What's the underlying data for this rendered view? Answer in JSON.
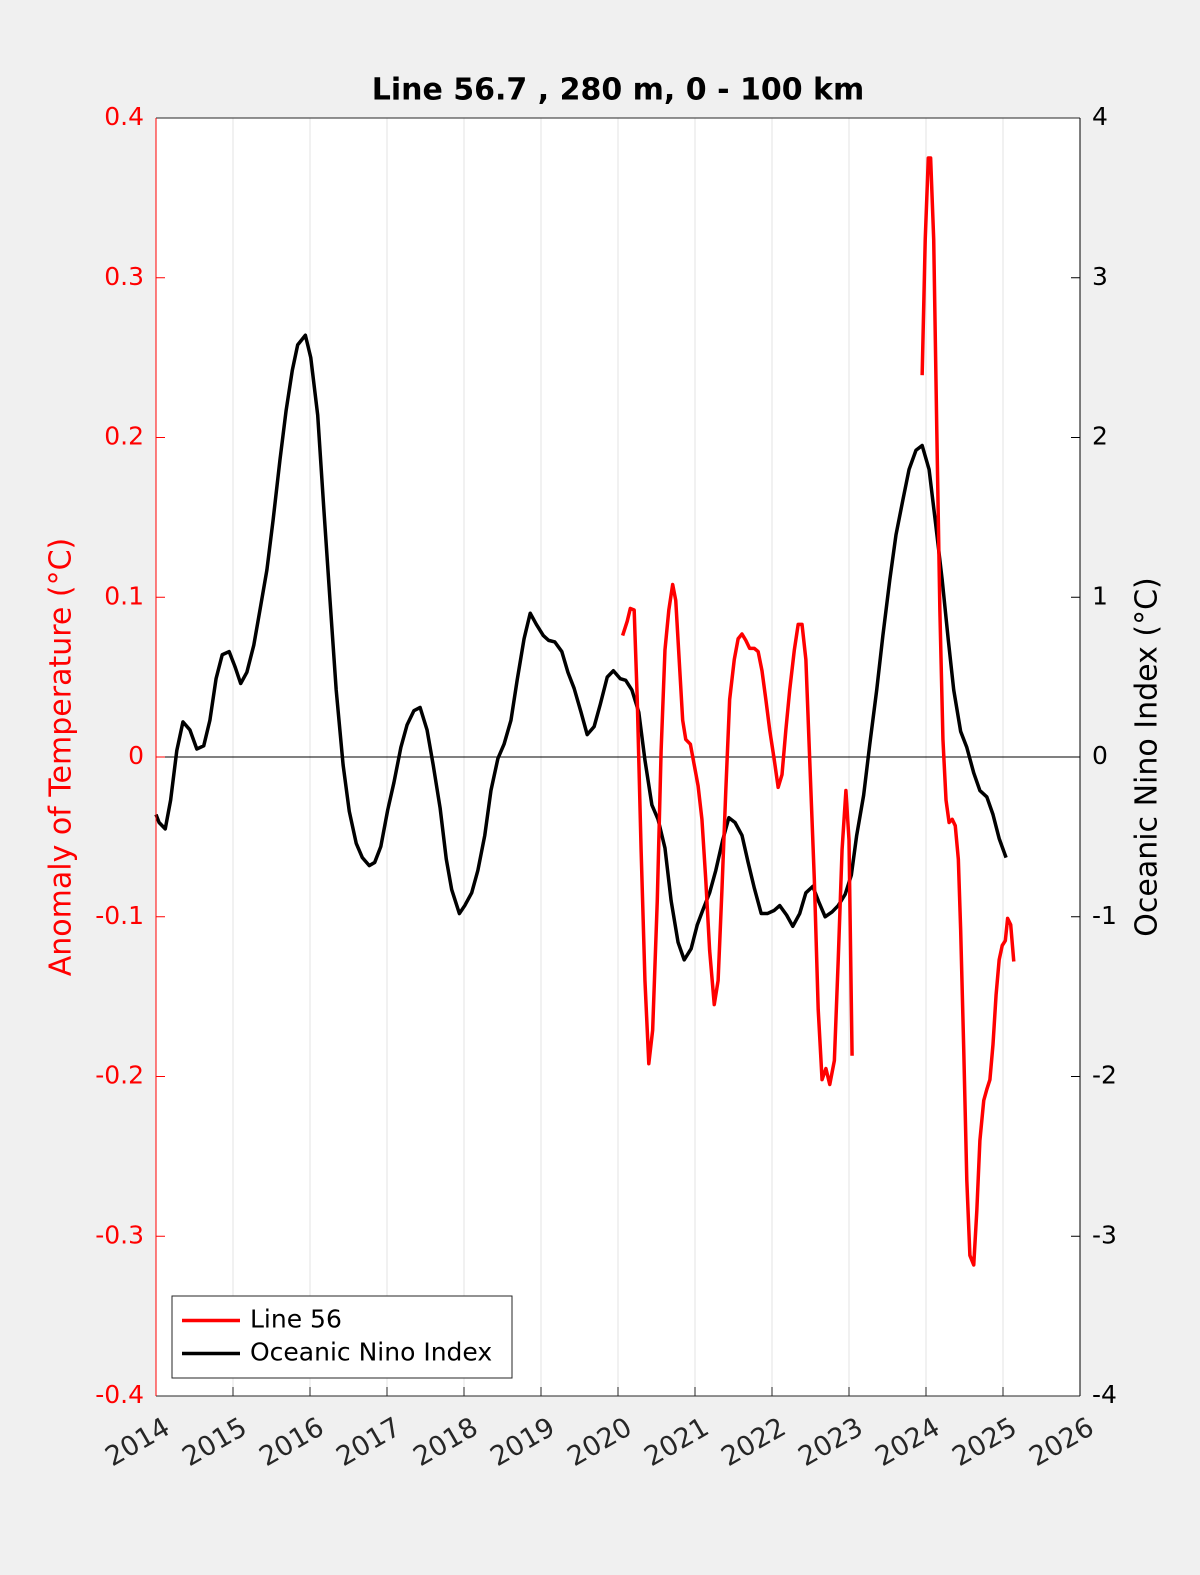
{
  "chart_data": {
    "type": "line",
    "title": "Line 56.7 , 280 m, 0 - 100 km",
    "ylabel": "Anomaly of Temperature (°C)",
    "y2label": "Oceanic Nino Index (°C)",
    "xlim": [
      2014,
      2026
    ],
    "xticks": [
      2014,
      2015,
      2016,
      2017,
      2018,
      2019,
      2020,
      2021,
      2022,
      2023,
      2024,
      2025,
      2026
    ],
    "ylim": [
      -0.4,
      0.4
    ],
    "yticks": [
      -0.4,
      -0.3,
      -0.2,
      -0.1,
      0,
      0.1,
      0.2,
      0.3,
      0.4
    ],
    "y2lim": [
      -4,
      4
    ],
    "y2ticks": [
      -4,
      -3,
      -2,
      -1,
      0,
      1,
      2,
      3,
      4
    ],
    "grid": "x",
    "zero_line": true,
    "legend": "lower left",
    "series": [
      {
        "name": "Line 56",
        "color": "#ff0000",
        "axis": "y",
        "x": [
          2020.06,
          2020.12,
          2020.16,
          2020.21,
          2020.25,
          2020.3,
          2020.35,
          2020.4,
          2020.45,
          2020.51,
          2020.56,
          2020.61,
          2020.66,
          2020.71,
          2020.75,
          2020.81,
          2020.84,
          2020.88,
          2020.94,
          2020.99,
          2021.04,
          2021.09,
          2021.14,
          2021.19,
          2021.25,
          2021.3,
          2021.35,
          2021.4,
          2021.45,
          2021.51,
          2021.56,
          2021.61,
          2021.66,
          2021.71,
          2021.77,
          2021.82,
          2021.87,
          2021.92,
          2021.97,
          2022.03,
          2022.08,
          2022.13,
          2022.18,
          2022.23,
          2022.29,
          2022.34,
          2022.39,
          2022.44,
          2022.49,
          2022.55,
          2022.6,
          2022.65,
          2022.7,
          2022.75,
          2022.81,
          2022.86,
          2022.91,
          2022.96,
          2023.0,
          2023.04,
          2023.5,
          2023.95,
          2023.99,
          2024.03,
          2024.06,
          2024.1,
          2024.14,
          2024.18,
          2024.22,
          2024.26,
          2024.3,
          2024.34,
          2024.38,
          2024.42,
          2024.45,
          2024.49,
          2024.53,
          2024.57,
          2024.62,
          2024.66,
          2024.7,
          2024.75,
          2024.79,
          2024.83,
          2024.87,
          2024.91,
          2024.95,
          2024.99,
          2025.03,
          2025.06,
          2025.1,
          2025.14
        ],
        "values": [
          0.076,
          0.085,
          0.093,
          0.092,
          0.036,
          -0.058,
          -0.14,
          -0.192,
          -0.171,
          -0.09,
          0.004,
          0.067,
          0.092,
          0.108,
          0.098,
          0.048,
          0.023,
          0.011,
          0.008,
          -0.005,
          -0.018,
          -0.039,
          -0.077,
          -0.121,
          -0.155,
          -0.14,
          -0.083,
          -0.021,
          0.036,
          0.061,
          0.074,
          0.077,
          0.073,
          0.068,
          0.068,
          0.066,
          0.054,
          0.036,
          0.017,
          -0.002,
          -0.019,
          -0.011,
          0.017,
          0.042,
          0.067,
          0.083,
          0.083,
          0.061,
          -0.002,
          -0.077,
          -0.158,
          -0.202,
          -0.195,
          -0.205,
          -0.19,
          -0.127,
          -0.058,
          -0.021,
          -0.052,
          -0.187,
          null,
          0.239,
          0.324,
          0.375,
          0.375,
          0.324,
          0.205,
          0.092,
          0.011,
          -0.027,
          -0.041,
          -0.039,
          -0.043,
          -0.064,
          -0.108,
          -0.183,
          -0.265,
          -0.312,
          -0.318,
          -0.284,
          -0.24,
          -0.215,
          -0.208,
          -0.202,
          -0.18,
          -0.149,
          -0.127,
          -0.118,
          -0.115,
          -0.101,
          -0.105,
          -0.128
        ]
      },
      {
        "name": "Oceanic Nino Index",
        "color": "#000000",
        "axis": "y2",
        "x": [
          2014.0,
          2014.04,
          2014.12,
          2014.19,
          2014.27,
          2014.35,
          2014.44,
          2014.53,
          2014.62,
          2014.7,
          2014.78,
          2014.86,
          2014.95,
          2015.03,
          2015.1,
          2015.18,
          2015.27,
          2015.35,
          2015.44,
          2015.52,
          2015.61,
          2015.69,
          2015.77,
          2015.84,
          2015.94,
          2016.01,
          2016.1,
          2016.18,
          2016.26,
          2016.34,
          2016.43,
          2016.51,
          2016.6,
          2016.68,
          2016.77,
          2016.84,
          2016.92,
          2017.01,
          2017.09,
          2017.18,
          2017.26,
          2017.35,
          2017.43,
          2017.52,
          2017.6,
          2017.69,
          2017.77,
          2017.84,
          2017.94,
          2018.01,
          2018.1,
          2018.18,
          2018.27,
          2018.35,
          2018.44,
          2018.52,
          2018.61,
          2018.69,
          2018.78,
          2018.86,
          2018.94,
          2019.03,
          2019.1,
          2019.18,
          2019.27,
          2019.35,
          2019.43,
          2019.52,
          2019.6,
          2019.69,
          2019.77,
          2019.86,
          2019.94,
          2020.03,
          2020.1,
          2020.18,
          2020.27,
          2020.35,
          2020.44,
          2020.52,
          2020.61,
          2020.69,
          2020.78,
          2020.86,
          2020.95,
          2021.03,
          2021.1,
          2021.19,
          2021.27,
          2021.36,
          2021.44,
          2021.52,
          2021.61,
          2021.69,
          2021.77,
          2021.86,
          2021.94,
          2022.03,
          2022.1,
          2022.19,
          2022.27,
          2022.36,
          2022.44,
          2022.53,
          2022.61,
          2022.69,
          2022.78,
          2022.86,
          2022.95,
          2023.03,
          2023.1,
          2023.19,
          2023.27,
          2023.36,
          2023.44,
          2023.53,
          2023.61,
          2023.7,
          2023.78,
          2023.87,
          2023.95,
          2024.04,
          2024.12,
          2024.21,
          2024.29,
          2024.36,
          2024.45,
          2024.53,
          2024.62,
          2024.7,
          2024.79,
          2024.87,
          2024.95,
          2025.04
        ],
        "values": [
          -0.36,
          -0.41,
          -0.45,
          -0.27,
          0.04,
          0.22,
          0.17,
          0.05,
          0.07,
          0.23,
          0.49,
          0.64,
          0.66,
          0.56,
          0.46,
          0.53,
          0.7,
          0.92,
          1.17,
          1.48,
          1.86,
          2.17,
          2.42,
          2.58,
          2.64,
          2.5,
          2.14,
          1.55,
          0.98,
          0.42,
          -0.05,
          -0.34,
          -0.54,
          -0.63,
          -0.68,
          -0.66,
          -0.56,
          -0.33,
          -0.16,
          0.06,
          0.2,
          0.29,
          0.31,
          0.17,
          -0.05,
          -0.32,
          -0.64,
          -0.83,
          -0.98,
          -0.93,
          -0.85,
          -0.71,
          -0.49,
          -0.21,
          -0.01,
          0.08,
          0.23,
          0.48,
          0.74,
          0.9,
          0.83,
          0.76,
          0.73,
          0.72,
          0.66,
          0.53,
          0.43,
          0.28,
          0.14,
          0.19,
          0.33,
          0.5,
          0.54,
          0.49,
          0.48,
          0.42,
          0.28,
          -0.02,
          -0.3,
          -0.39,
          -0.57,
          -0.9,
          -1.16,
          -1.27,
          -1.2,
          -1.05,
          -0.96,
          -0.85,
          -0.71,
          -0.52,
          -0.38,
          -0.41,
          -0.49,
          -0.66,
          -0.82,
          -0.98,
          -0.98,
          -0.96,
          -0.93,
          -0.99,
          -1.06,
          -0.98,
          -0.85,
          -0.81,
          -0.91,
          -1.0,
          -0.97,
          -0.93,
          -0.86,
          -0.74,
          -0.49,
          -0.24,
          0.08,
          0.42,
          0.76,
          1.11,
          1.39,
          1.61,
          1.8,
          1.92,
          1.95,
          1.8,
          1.48,
          1.11,
          0.73,
          0.42,
          0.16,
          0.06,
          -0.1,
          -0.21,
          -0.25,
          -0.36,
          -0.51,
          -0.63
        ]
      }
    ]
  }
}
